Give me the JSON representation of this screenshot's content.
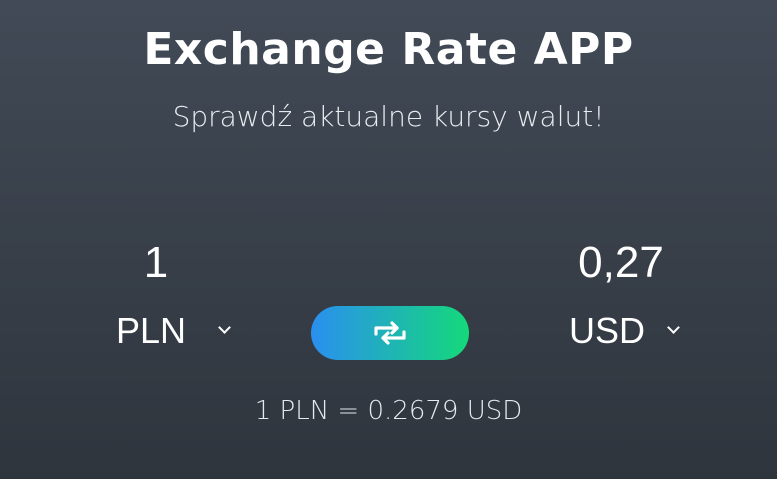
{
  "app": {
    "title": "Exchange Rate APP",
    "subtitle": "Sprawdź aktualne kursy walut!"
  },
  "from": {
    "amount": "1",
    "currency": "PLN"
  },
  "to": {
    "amount": "0,27",
    "currency": "USD"
  },
  "swap": {
    "icon": "swap-arrows-icon"
  },
  "rate_text": "1 PLN = 0.2679 USD",
  "colors": {
    "background_top": "#414a56",
    "background_bottom": "#2f353d",
    "button_gradient_start": "#2a8ff0",
    "button_gradient_end": "#14d97a"
  }
}
